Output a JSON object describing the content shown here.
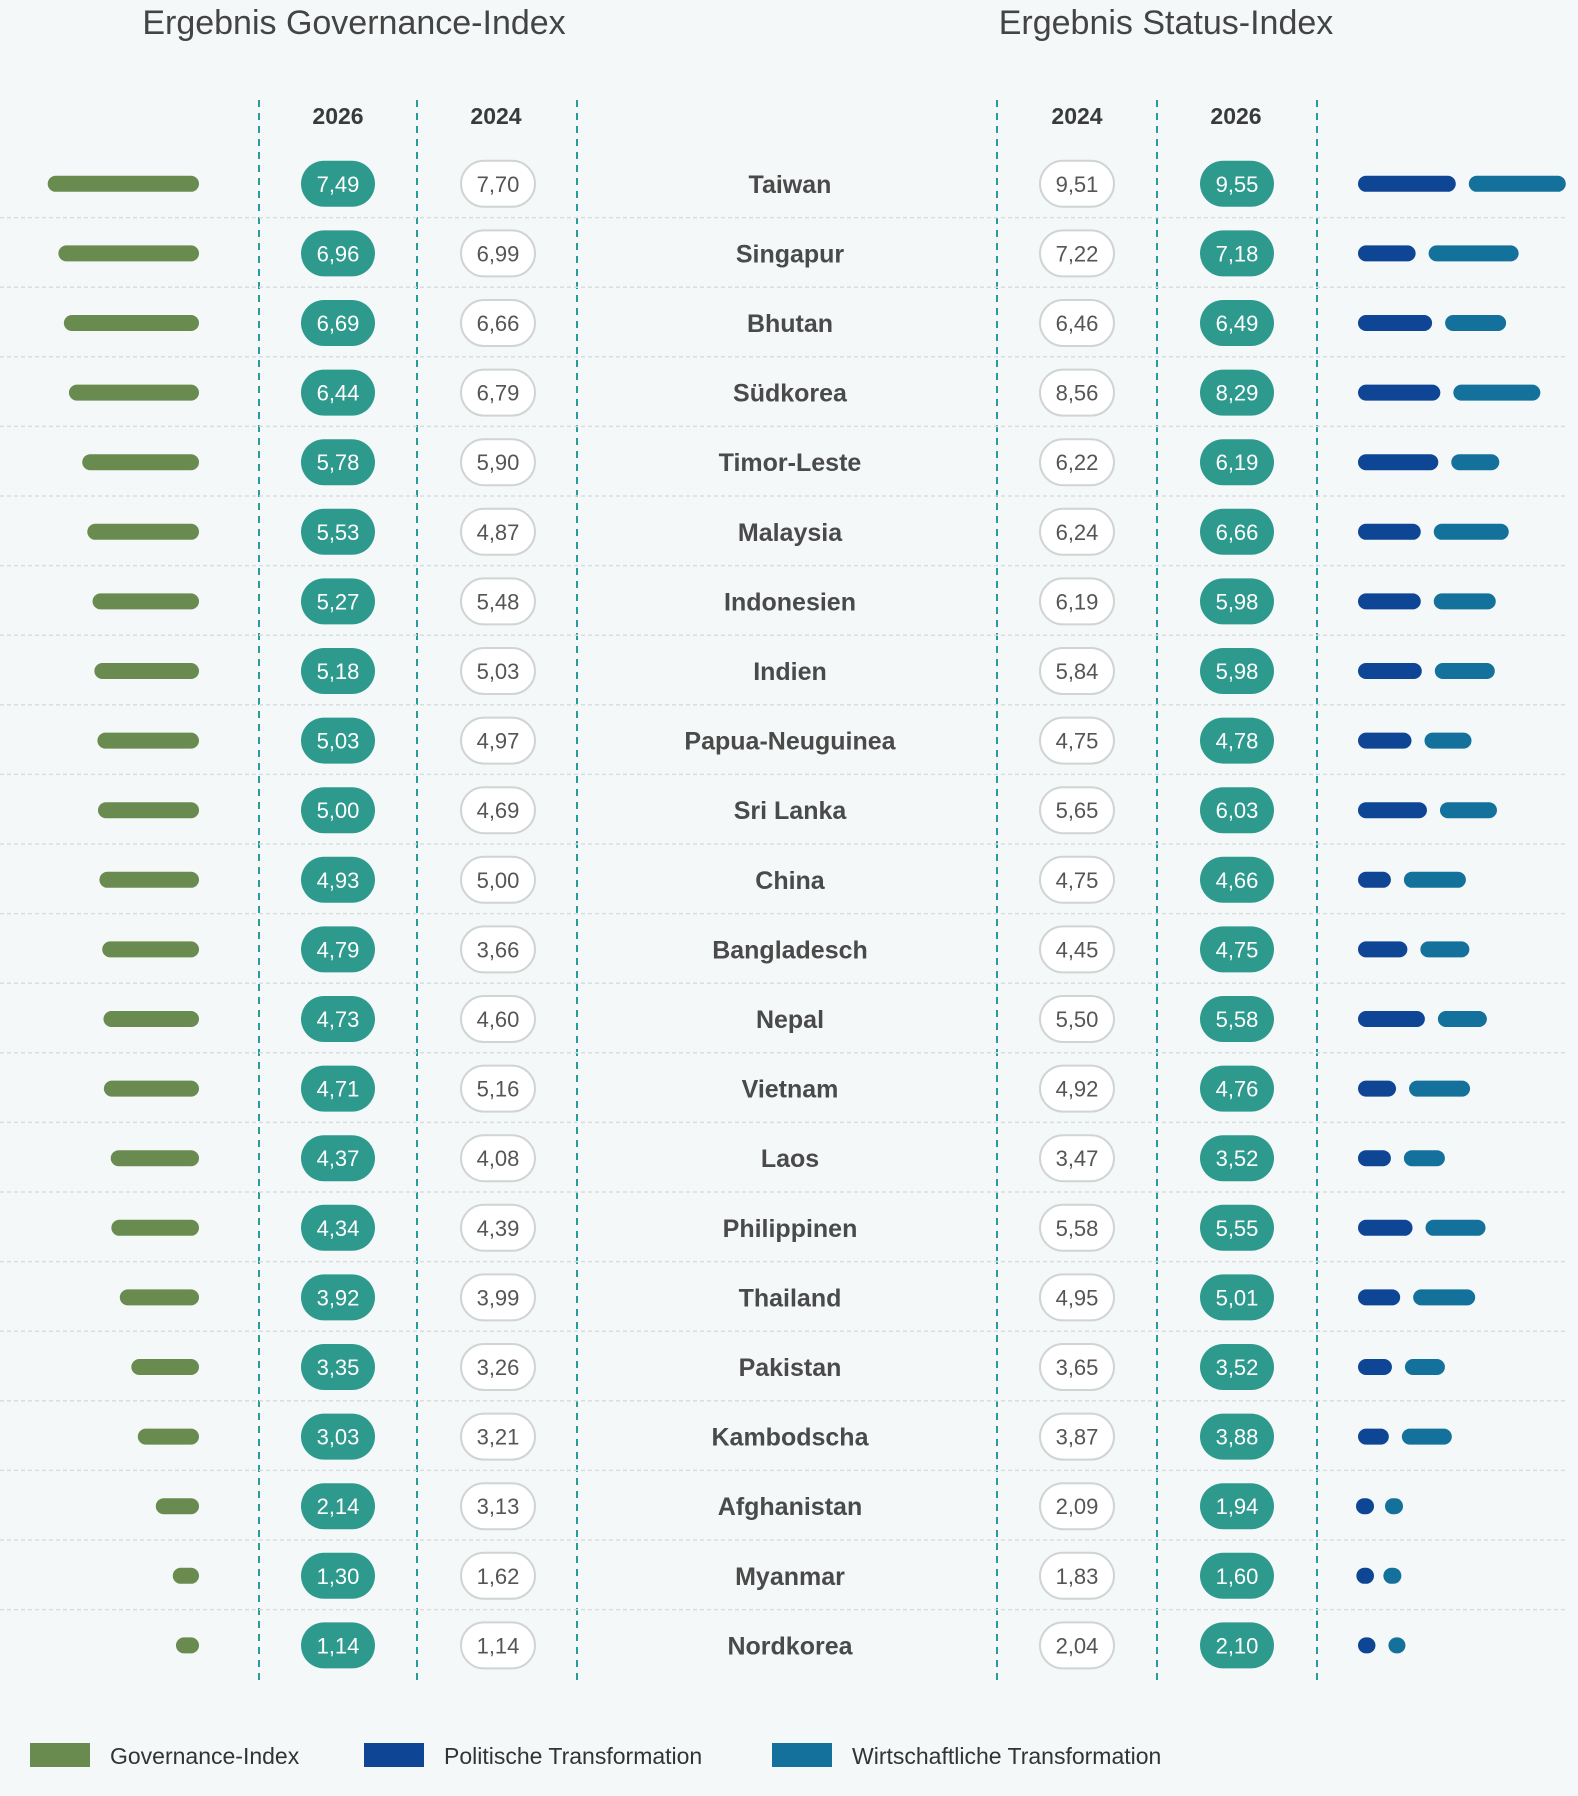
{
  "colors": {
    "governance": "#6a8b4f",
    "political": "#0f4595",
    "economic": "#13719c",
    "pill_dark": "#2e9a8e",
    "divider_dashed": "#2a9a9a",
    "row_line": "#d8dddd"
  },
  "chart_data": {
    "type": "table",
    "titles": {
      "governance": "Ergebnis Governance-Index",
      "status": "Ergebnis Status-Index"
    },
    "column_headers": {
      "gi_2026": "2026",
      "gi_2024": "2024",
      "si_2024": "2024",
      "si_2026": "2026"
    },
    "bar_max_value": 10,
    "rows": [
      {
        "country": "Taiwan",
        "gi_2026": "7,49",
        "gi_2024": "7,70",
        "si_2024": "9,51",
        "si_2026": "9,55",
        "gi_bar": 7.49,
        "pol": 9.3,
        "eco": 9.5
      },
      {
        "country": "Singapur",
        "gi_2026": "6,96",
        "gi_2024": "6,99",
        "si_2024": "7,22",
        "si_2026": "7,18",
        "gi_bar": 6.96,
        "pol": 5.4,
        "eco": 8.8
      },
      {
        "country": "Bhutan",
        "gi_2026": "6,69",
        "gi_2024": "6,66",
        "si_2024": "6,46",
        "si_2026": "6,49",
        "gi_bar": 6.69,
        "pol": 7.0,
        "eco": 5.9
      },
      {
        "country": "Südkorea",
        "gi_2026": "6,44",
        "gi_2024": "6,79",
        "si_2024": "8,56",
        "si_2026": "8,29",
        "gi_bar": 6.44,
        "pol": 7.8,
        "eco": 8.5
      },
      {
        "country": "Timor-Leste",
        "gi_2026": "5,78",
        "gi_2024": "5,90",
        "si_2024": "6,22",
        "si_2026": "6,19",
        "gi_bar": 5.78,
        "pol": 7.6,
        "eco": 4.6
      },
      {
        "country": "Malaysia",
        "gi_2026": "5,53",
        "gi_2024": "4,87",
        "si_2024": "6,24",
        "si_2026": "6,66",
        "gi_bar": 5.53,
        "pol": 5.9,
        "eco": 7.3
      },
      {
        "country": "Indonesien",
        "gi_2026": "5,27",
        "gi_2024": "5,48",
        "si_2024": "6,19",
        "si_2026": "5,98",
        "gi_bar": 5.27,
        "pol": 5.9,
        "eco": 6.0
      },
      {
        "country": "Indien",
        "gi_2026": "5,18",
        "gi_2024": "5,03",
        "si_2024": "5,84",
        "si_2026": "5,98",
        "gi_bar": 5.18,
        "pol": 6.0,
        "eco": 5.8
      },
      {
        "country": "Papua-Neuguinea",
        "gi_2026": "5,03",
        "gi_2024": "4,97",
        "si_2024": "4,75",
        "si_2026": "4,78",
        "gi_bar": 5.03,
        "pol": 5.0,
        "eco": 4.5
      },
      {
        "country": "Sri Lanka",
        "gi_2026": "5,00",
        "gi_2024": "4,69",
        "si_2024": "5,65",
        "si_2026": "6,03",
        "gi_bar": 5.0,
        "pol": 6.5,
        "eco": 5.5
      },
      {
        "country": "China",
        "gi_2026": "4,93",
        "gi_2024": "5,00",
        "si_2024": "4,75",
        "si_2026": "4,66",
        "gi_bar": 4.93,
        "pol": 3.0,
        "eco": 6.0
      },
      {
        "country": "Bangladesch",
        "gi_2026": "4,79",
        "gi_2024": "3,66",
        "si_2024": "4,45",
        "si_2026": "4,75",
        "gi_bar": 4.79,
        "pol": 4.6,
        "eco": 4.7
      },
      {
        "country": "Nepal",
        "gi_2026": "4,73",
        "gi_2024": "4,60",
        "si_2024": "5,50",
        "si_2026": "5,58",
        "gi_bar": 4.73,
        "pol": 6.3,
        "eco": 4.7
      },
      {
        "country": "Vietnam",
        "gi_2026": "4,71",
        "gi_2024": "5,16",
        "si_2024": "4,92",
        "si_2026": "4,76",
        "gi_bar": 4.71,
        "pol": 3.5,
        "eco": 5.9
      },
      {
        "country": "Laos",
        "gi_2026": "4,37",
        "gi_2024": "4,08",
        "si_2024": "3,47",
        "si_2026": "3,52",
        "gi_bar": 4.37,
        "pol": 3.0,
        "eco": 3.9
      },
      {
        "country": "Philippinen",
        "gi_2026": "4,34",
        "gi_2024": "4,39",
        "si_2024": "5,58",
        "si_2026": "5,55",
        "gi_bar": 4.34,
        "pol": 5.1,
        "eco": 5.8
      },
      {
        "country": "Thailand",
        "gi_2026": "3,92",
        "gi_2024": "3,99",
        "si_2024": "4,95",
        "si_2026": "5,01",
        "gi_bar": 3.92,
        "pol": 3.9,
        "eco": 6.0
      },
      {
        "country": "Pakistan",
        "gi_2026": "3,35",
        "gi_2024": "3,26",
        "si_2024": "3,65",
        "si_2026": "3,52",
        "gi_bar": 3.35,
        "pol": 3.1,
        "eco": 3.8
      },
      {
        "country": "Kambodscha",
        "gi_2026": "3,03",
        "gi_2024": "3,21",
        "si_2024": "3,87",
        "si_2026": "3,88",
        "gi_bar": 3.03,
        "pol": 2.8,
        "eco": 4.8
      },
      {
        "country": "Afghanistan",
        "gi_2026": "2,14",
        "gi_2024": "3,13",
        "si_2024": "2,09",
        "si_2026": "1,94",
        "gi_bar": 2.14,
        "pol": 1.0,
        "eco": 1.6
      },
      {
        "country": "Myanmar",
        "gi_2026": "1,30",
        "gi_2024": "1,62",
        "si_2024": "1,83",
        "si_2026": "1,60",
        "gi_bar": 1.3,
        "pol": 1.2,
        "eco": 1.2
      },
      {
        "country": "Nordkorea",
        "gi_2026": "1,14",
        "gi_2024": "1,14",
        "si_2024": "2,04",
        "si_2026": "2,10",
        "gi_bar": 1.14,
        "pol": 1.5,
        "eco": 1.5
      }
    ],
    "legend": {
      "governance": "Governance-Index",
      "political": "Politische Transformation",
      "economic": "Wirtschaftliche Transformation"
    }
  }
}
